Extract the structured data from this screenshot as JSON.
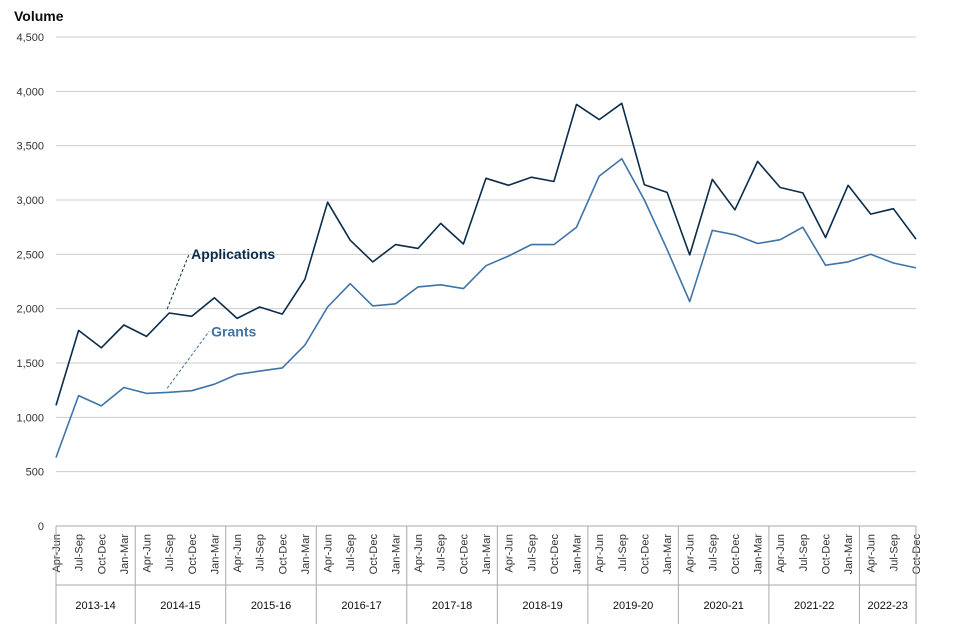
{
  "colors": {
    "applications": "#0b2c4a",
    "grants": "#3e74a8",
    "grid": "#cccccc",
    "axis": "#aaaaaa"
  },
  "chart_data": {
    "type": "line",
    "ylabel": "Volume",
    "xlabel": "",
    "ylim": [
      0,
      4500
    ],
    "yticks": [
      0,
      500,
      1000,
      1500,
      2000,
      2500,
      3000,
      3500,
      4000,
      4500
    ],
    "ytick_labels": [
      "0",
      "500",
      "1,000",
      "1,500",
      "2,000",
      "2,500",
      "3,000",
      "3,500",
      "4,000",
      "4,500"
    ],
    "grid": true,
    "categories": [
      "Apr-Jun",
      "Jul-Sep",
      "Oct-Dec",
      "Jan-Mar",
      "Apr-Jun",
      "Jul-Sep",
      "Oct-Dec",
      "Jan-Mar",
      "Apr-Jun",
      "Jul-Sep",
      "Oct-Dec",
      "Jan-Mar",
      "Apr-Jun",
      "Jul-Sep",
      "Oct-Dec",
      "Jan-Mar",
      "Apr-Jun",
      "Jul-Sep",
      "Oct-Dec",
      "Jan-Mar",
      "Apr-Jun",
      "Jul-Sep",
      "Oct-Dec",
      "Jan-Mar",
      "Apr-Jun",
      "Jul-Sep",
      "Oct-Dec",
      "Jan-Mar",
      "Apr-Jun",
      "Jul-Sep",
      "Oct-Dec",
      "Jan-Mar",
      "Apr-Jun",
      "Jul-Sep",
      "Oct-Dec",
      "Jan-Mar",
      "Apr-Jun",
      "Jul-Sep",
      "Oct-Dec"
    ],
    "groups": [
      {
        "label": "2013-14",
        "count": 4
      },
      {
        "label": "2014-15",
        "count": 4
      },
      {
        "label": "2015-16",
        "count": 4
      },
      {
        "label": "2016-17",
        "count": 4
      },
      {
        "label": "2017-18",
        "count": 4
      },
      {
        "label": "2018-19",
        "count": 4
      },
      {
        "label": "2019-20",
        "count": 4
      },
      {
        "label": "2020-21",
        "count": 4
      },
      {
        "label": "2021-22",
        "count": 4
      },
      {
        "label": "2022-23",
        "count": 3
      }
    ],
    "series": [
      {
        "name": "Applications",
        "color_key": "applications",
        "label_index": 5,
        "values": [
          1110,
          1800,
          1640,
          1850,
          1745,
          1960,
          1930,
          2100,
          1910,
          2015,
          1950,
          2270,
          2980,
          2630,
          2430,
          2590,
          2555,
          2785,
          2595,
          3200,
          3135,
          3210,
          3170,
          3880,
          3740,
          3890,
          3140,
          3070,
          2495,
          3190,
          2910,
          3355,
          3115,
          3065,
          2655,
          3135,
          2870,
          2920,
          2640
        ]
      },
      {
        "name": "Grants",
        "color_key": "grants",
        "label_index": 5,
        "values": [
          630,
          1200,
          1105,
          1275,
          1220,
          1230,
          1245,
          1305,
          1395,
          1425,
          1455,
          1665,
          2015,
          2230,
          2025,
          2045,
          2200,
          2220,
          2185,
          2395,
          2485,
          2590,
          2590,
          2750,
          3220,
          3380,
          3000,
          2545,
          2065,
          2720,
          2680,
          2600,
          2635,
          2750,
          2400,
          2430,
          2500,
          2420,
          2375
        ]
      }
    ]
  }
}
